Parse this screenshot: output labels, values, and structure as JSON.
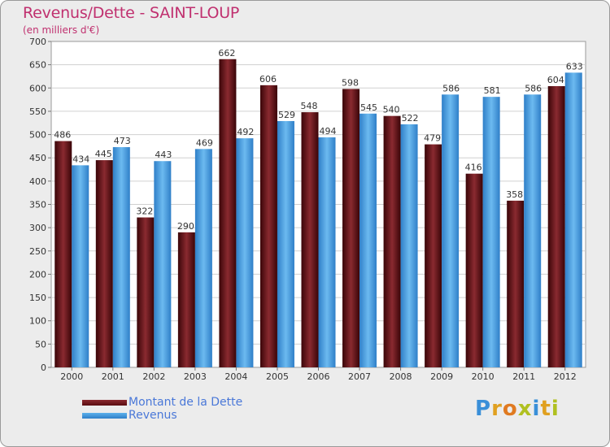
{
  "header": {
    "title": "Revenus/Dette - SAINT-LOUP",
    "subtitle": "(en milliers d'€)"
  },
  "colors": {
    "dette": "#7a1a1f",
    "revenus": "#4fa6e6",
    "accent": "#c0306f"
  },
  "chart_data": {
    "type": "bar",
    "title": "Revenus/Dette - SAINT-LOUP",
    "subtitle": "(en milliers d'€)",
    "xlabel": "",
    "ylabel": "",
    "ylim": [
      0,
      700
    ],
    "yticks": [
      0,
      50,
      100,
      150,
      200,
      250,
      300,
      350,
      400,
      450,
      500,
      550,
      600,
      650,
      700
    ],
    "grid": true,
    "legend_position": "bottom-left",
    "categories": [
      "2000",
      "2001",
      "2002",
      "2003",
      "2004",
      "2005",
      "2006",
      "2007",
      "2008",
      "2009",
      "2010",
      "2011",
      "2012"
    ],
    "series": [
      {
        "name": "Montant de la Dette",
        "values": [
          486,
          445,
          322,
          290,
          662,
          606,
          548,
          598,
          540,
          479,
          416,
          358,
          604
        ]
      },
      {
        "name": "Revenus",
        "values": [
          434,
          473,
          443,
          469,
          492,
          529,
          494,
          545,
          522,
          586,
          581,
          586,
          633
        ]
      }
    ]
  },
  "legend": {
    "items": [
      {
        "label": "Montant de la Dette"
      },
      {
        "label": "Revenus"
      }
    ]
  },
  "logo": {
    "text": "Proxiti"
  }
}
